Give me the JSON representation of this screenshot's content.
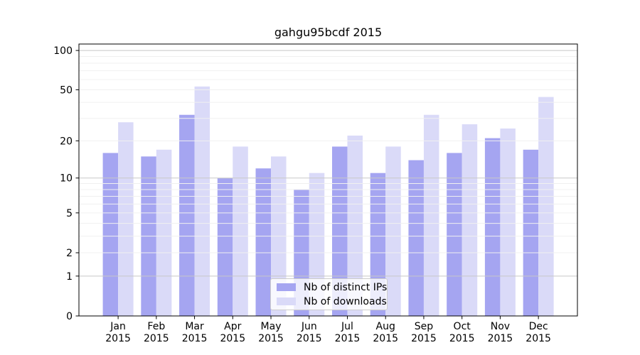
{
  "chart_data": {
    "type": "bar",
    "title": "gahgu95bcdf 2015",
    "x_categories": [
      "Jan",
      "Feb",
      "Mar",
      "Apr",
      "May",
      "Jun",
      "Jul",
      "Aug",
      "Sep",
      "Oct",
      "Nov",
      "Dec"
    ],
    "x_category_year": "2015",
    "series": [
      {
        "name": "Nb of distinct IPs",
        "color": "#a5a5f1",
        "values": [
          16,
          15,
          32,
          10,
          12,
          8,
          18,
          11,
          14,
          16,
          21,
          17
        ]
      },
      {
        "name": "Nb of downloads",
        "color": "#dadaf8",
        "values": [
          28,
          17,
          53,
          18,
          15,
          11,
          22,
          18,
          32,
          27,
          25,
          44
        ]
      }
    ],
    "y_axis": {
      "scale": "log1p",
      "ticks": [
        0,
        1,
        2,
        5,
        10,
        20,
        50,
        100
      ],
      "max": 112
    },
    "grid": {
      "major": [
        1,
        10,
        100
      ],
      "minor": [
        2,
        3,
        4,
        5,
        6,
        7,
        8,
        9,
        20,
        30,
        40,
        50,
        60,
        70,
        80,
        90
      ],
      "major_color": "#c8c8c8",
      "minor_color": "#f0f0f0",
      "grid_above_bars": true
    },
    "legend": {
      "position": "lower-center",
      "frame_alpha": 0.8
    }
  }
}
